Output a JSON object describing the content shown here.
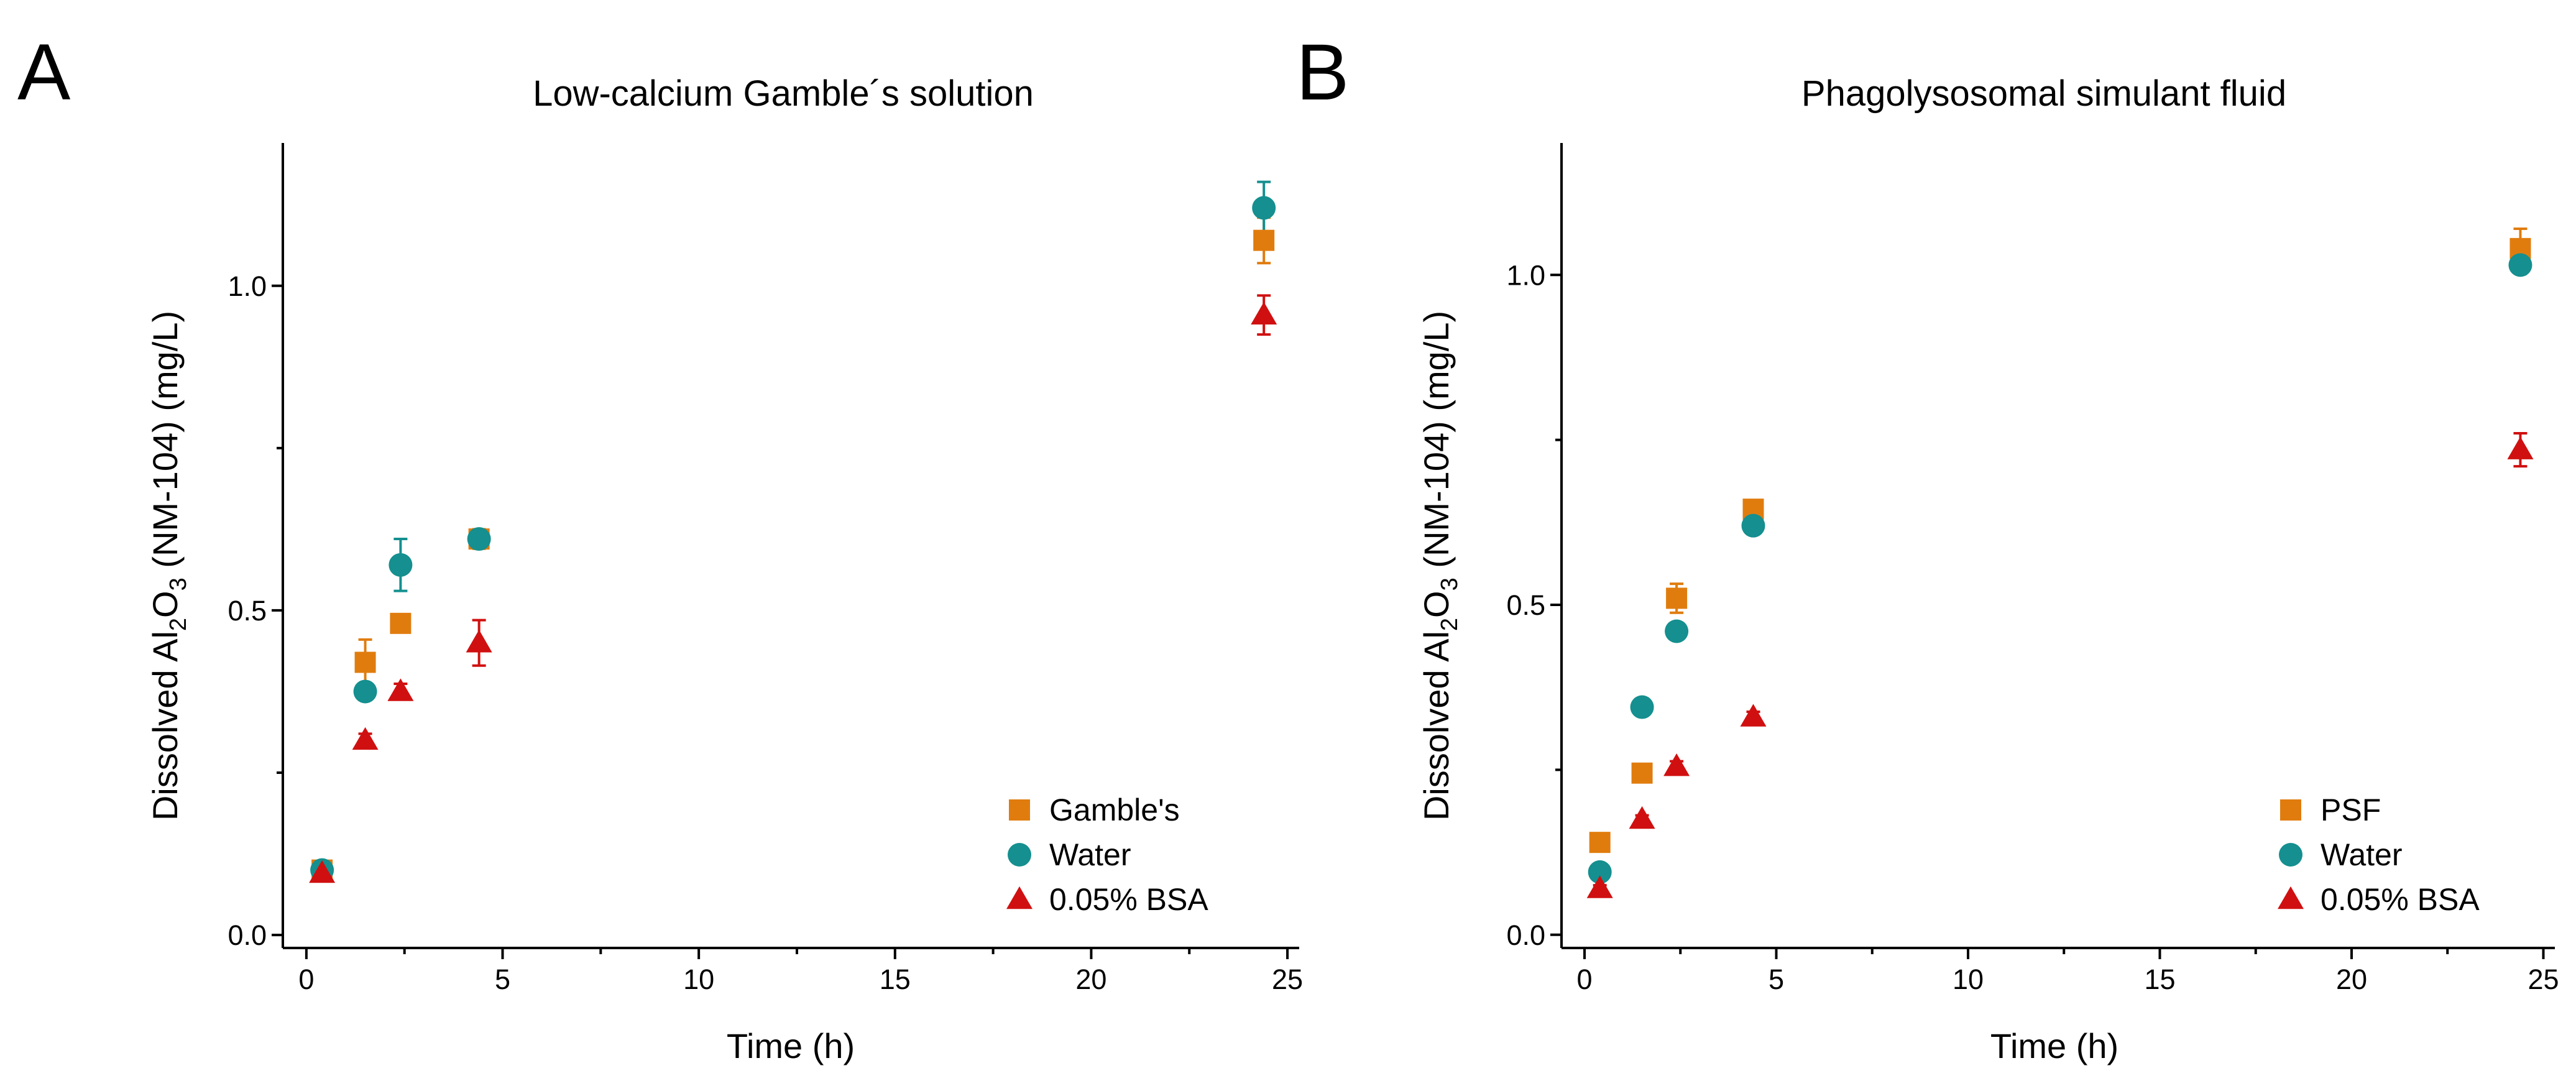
{
  "colors": {
    "orange": "#e07c0e",
    "teal": "#158f8f",
    "red": "#d01010"
  },
  "chart_data": [
    {
      "panel": "A",
      "type": "scatter",
      "title": "Low-calcium Gamble´s solution",
      "xlabel": "Time (h)",
      "ylabel": {
        "prefix": "Dissolved Al",
        "sub1": "2",
        "middle": "O",
        "sub2": "3",
        "suffix": " (NM-104) (mg/L)"
      },
      "xlim": [
        -0.6,
        25.3
      ],
      "ylim": [
        -0.02,
        1.22
      ],
      "xticks": [
        0,
        5,
        10,
        15,
        20,
        25
      ],
      "yticks": [
        0.0,
        0.5,
        1.0
      ],
      "yticks_labels": [
        "0.0",
        "0.5",
        "1.0"
      ],
      "grid": false,
      "legend_position": "bottom-right",
      "series": [
        {
          "name": "Gamble's",
          "marker": "square",
          "color": "#e07c0e",
          "x": [
            0.4,
            1.5,
            2.4,
            4.4,
            24.4
          ],
          "y": [
            0.1,
            0.42,
            0.48,
            0.61,
            1.07
          ],
          "err": [
            0.008,
            0.035,
            0.012,
            0.015,
            0.035
          ]
        },
        {
          "name": "Water",
          "marker": "circle",
          "color": "#158f8f",
          "x": [
            0.4,
            1.5,
            2.4,
            4.4,
            24.4
          ],
          "y": [
            0.1,
            0.375,
            0.57,
            0.61,
            1.12
          ],
          "err": [
            0.008,
            0.012,
            0.04,
            0.012,
            0.04
          ]
        },
        {
          "name": "0.05% BSA",
          "marker": "triangle",
          "color": "#d01010",
          "x": [
            0.4,
            1.5,
            2.4,
            4.4,
            24.4
          ],
          "y": [
            0.095,
            0.3,
            0.375,
            0.45,
            0.955
          ],
          "err": [
            0.006,
            0.01,
            0.012,
            0.035,
            0.03
          ]
        }
      ]
    },
    {
      "panel": "B",
      "type": "scatter",
      "title": "Phagolysosomal simulant fluid",
      "xlabel": "Time (h)",
      "ylabel": {
        "prefix": "Dissolved Al",
        "sub1": "2",
        "middle": "O",
        "sub2": "3",
        "suffix": " (NM-104) (mg/L)"
      },
      "xlim": [
        -0.6,
        25.3
      ],
      "ylim": [
        -0.02,
        1.2
      ],
      "xticks": [
        0,
        5,
        10,
        15,
        20,
        25
      ],
      "yticks": [
        0.0,
        0.5,
        1.0
      ],
      "yticks_labels": [
        "0.0",
        "0.5",
        "1.0"
      ],
      "grid": false,
      "legend_position": "bottom-right",
      "series": [
        {
          "name": "PSF",
          "marker": "square",
          "color": "#e07c0e",
          "x": [
            0.4,
            1.5,
            2.4,
            4.4,
            24.4
          ],
          "y": [
            0.14,
            0.245,
            0.51,
            0.645,
            1.04
          ],
          "err": [
            0.005,
            0.006,
            0.022,
            0.01,
            0.03
          ]
        },
        {
          "name": "Water",
          "marker": "circle",
          "color": "#158f8f",
          "x": [
            0.4,
            1.5,
            2.4,
            4.4,
            24.4
          ],
          "y": [
            0.095,
            0.345,
            0.46,
            0.62,
            1.015
          ],
          "err": [
            0.005,
            0.006,
            0.008,
            0.008,
            0.012
          ]
        },
        {
          "name": "0.05% BSA",
          "marker": "triangle",
          "color": "#d01010",
          "x": [
            0.4,
            1.5,
            2.4,
            4.4,
            24.4
          ],
          "y": [
            0.07,
            0.175,
            0.255,
            0.33,
            0.735
          ],
          "err": [
            0.005,
            0.006,
            0.008,
            0.008,
            0.025
          ]
        }
      ]
    }
  ]
}
